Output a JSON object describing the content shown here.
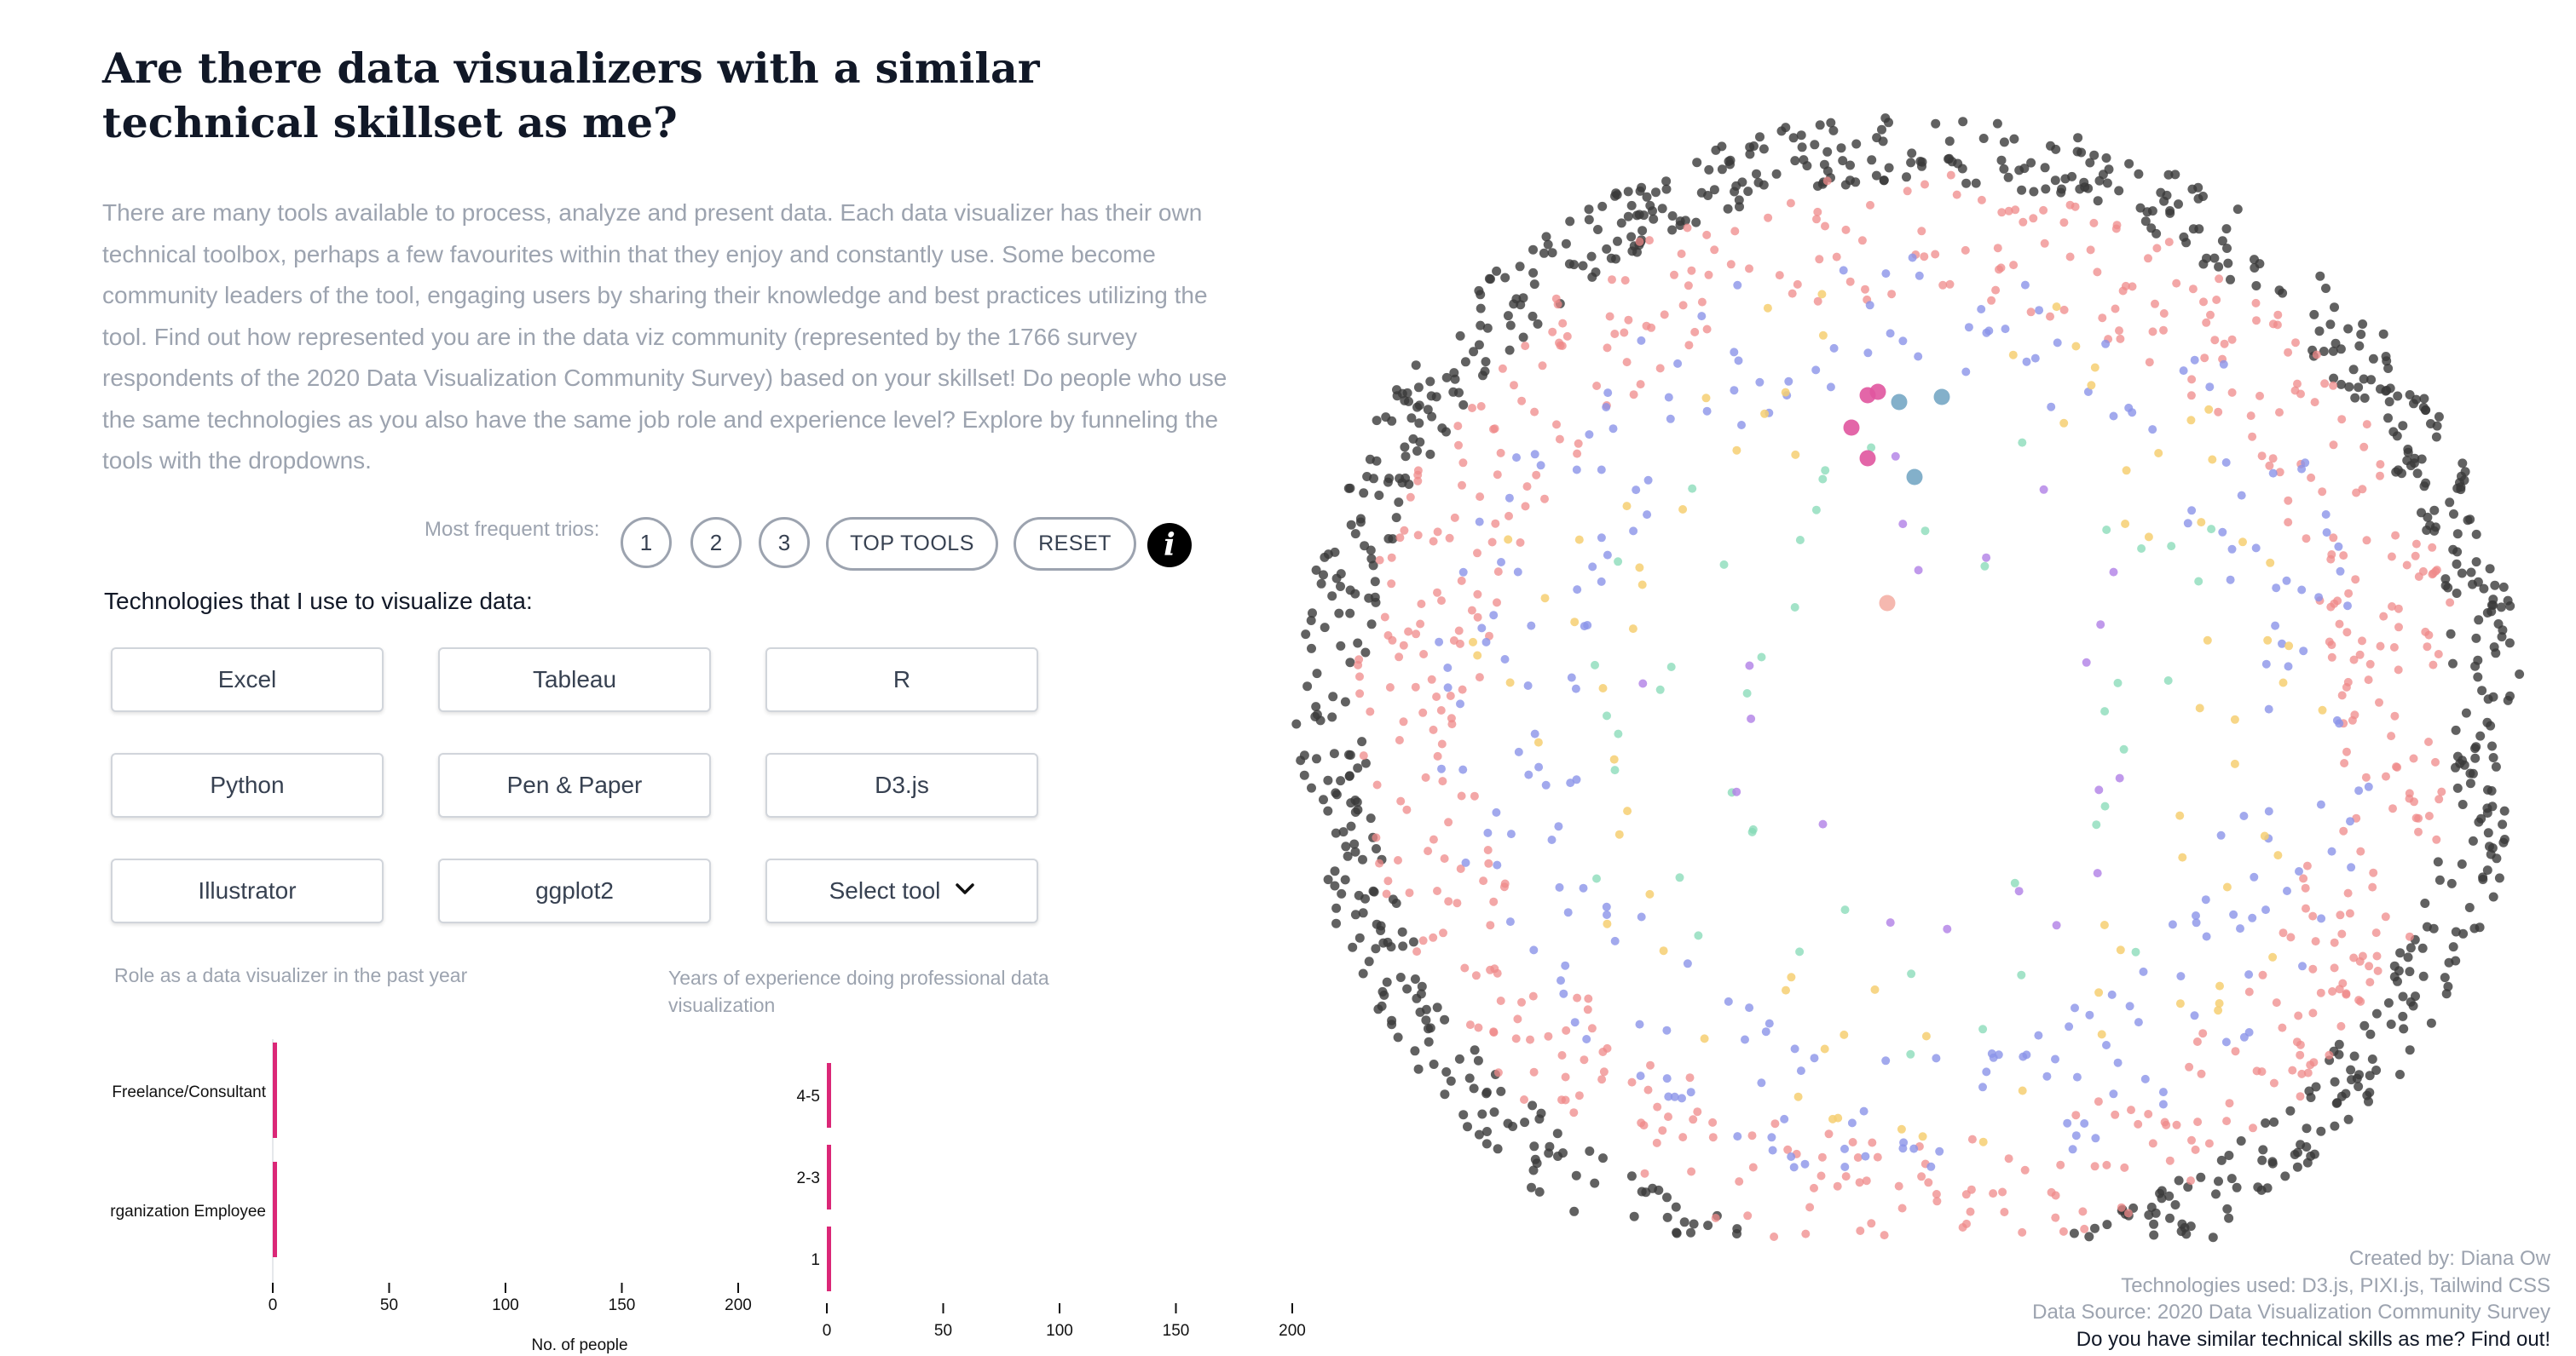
{
  "title": "Are there data visualizers with a similar technical skillset as me?",
  "intro": "There are many tools available to process, analyze and present data. Each data visualizer has their own technical toolbox, perhaps a few favourites within that they enjoy and constantly use. Some become community leaders of the tool, engaging users by sharing their knowledge and best practices utilizing the tool. Find out how represented you are in the data viz community (represented by the 1766 survey respondents of the 2020 Data Visualization Community Survey) based on your skillset! Do people who use the same technologies as you also have the same job role and experience level? Explore by funneling the tools with the dropdowns.",
  "trios": {
    "label": "Most frequent trios:",
    "buttons": [
      "1",
      "2",
      "3"
    ],
    "top_tools": "TOP TOOLS",
    "reset": "RESET",
    "info_icon": "i"
  },
  "tech_label": "Technologies that I use to visualize data:",
  "tools": [
    "Excel",
    "Tableau",
    "R",
    "Python",
    "Pen & Paper",
    "D3.js",
    "Illustrator",
    "ggplot2"
  ],
  "select_tool": "Select tool",
  "chart_data": [
    {
      "type": "bar",
      "orientation": "horizontal",
      "title": "Role as a data visualizer in the past year",
      "categories": [
        "Freelance/Consultant",
        "rganization Employee"
      ],
      "values": [
        1,
        1
      ],
      "xlim": [
        0,
        200
      ],
      "xticks": [
        "0",
        "50",
        "100",
        "150",
        "200"
      ],
      "xlabel": "No. of people",
      "bar_color": "#db2777"
    },
    {
      "type": "bar",
      "orientation": "horizontal",
      "title": "Years of experience doing professional data visualization",
      "categories": [
        "4-5",
        "2-3",
        "1"
      ],
      "values": [
        1,
        1,
        1
      ],
      "xlim": [
        0,
        200
      ],
      "xticks": [
        "0",
        "50",
        "100",
        "150",
        "200"
      ],
      "bar_color": "#db2777"
    }
  ],
  "scatter_colors": {
    "dark": "#3a3a3a",
    "pink": "#ef8a8a",
    "blue": "#8b93e8",
    "yellow": "#f6cf72",
    "green": "#84dab6",
    "purple": "#b07fe6",
    "magenta": "#e0559e",
    "teal": "#76a7c4",
    "peach": "#f4b0a6"
  },
  "credits": {
    "line1": "Created by: Diana Ow",
    "line2": "Technologies used: D3.js, PIXI.js, Tailwind CSS",
    "line3": "Data Source: 2020 Data Visualization Community Survey",
    "line4": "Do you have similar technical skills as me? Find out!"
  }
}
